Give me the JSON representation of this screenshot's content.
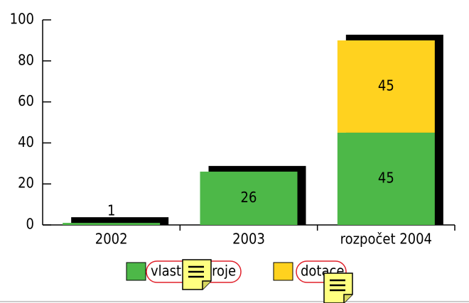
{
  "chart_data": {
    "type": "bar",
    "stacked": true,
    "categories": [
      "2002",
      "2003",
      "rozpočet 2004"
    ],
    "series": [
      {
        "name": "vlastní zdroje",
        "color": "#4db848",
        "values": [
          1,
          26,
          45
        ]
      },
      {
        "name": "dotace",
        "color": "#ffd21f",
        "values": [
          null,
          null,
          45
        ]
      }
    ],
    "ylim": [
      0,
      100
    ],
    "yticks": [
      0,
      20,
      40,
      60,
      80,
      100
    ]
  }
}
